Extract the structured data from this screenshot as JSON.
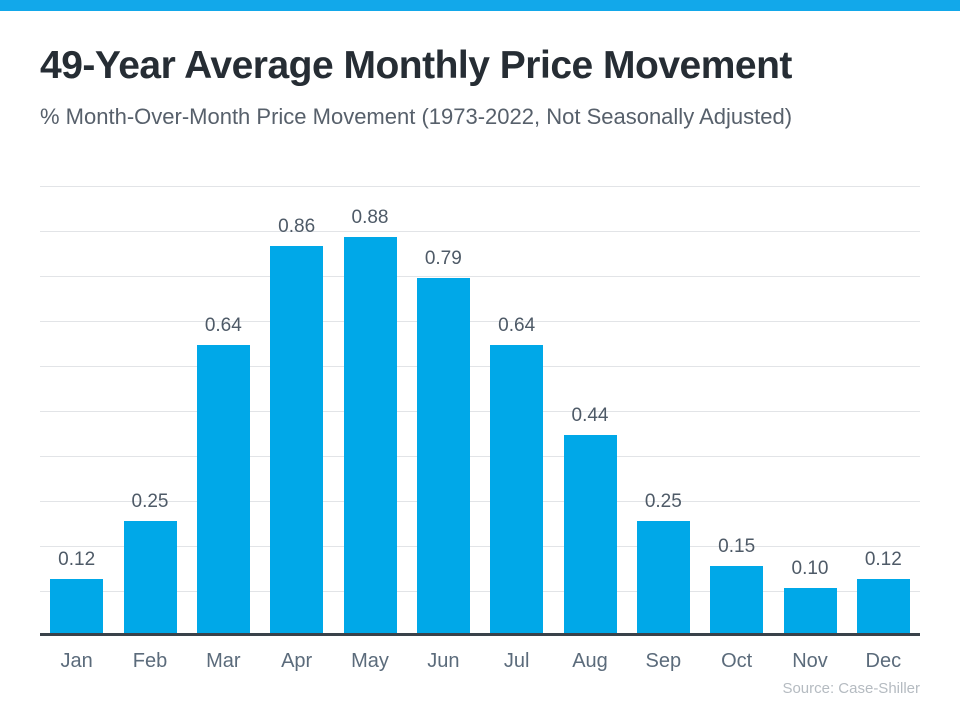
{
  "header": {
    "title": "49-Year Average Monthly Price Movement",
    "subtitle": "% Month-Over-Month Price Movement (1973-2022, Not Seasonally Adjusted)"
  },
  "footer": {
    "source": "Source: Case-Shiller"
  },
  "colors": {
    "accent_strip": "#12A8EA",
    "bar": "#00A8E8",
    "title_text": "#262D34",
    "subtitle_text": "#57606B",
    "value_label_text": "#4E5A67",
    "month_label_text": "#5B6B7B",
    "gridline": "#E2E4E7",
    "axis_line": "#3A424A",
    "source_text": "#B5BBC1"
  },
  "chart_data": {
    "type": "bar",
    "title": "49-Year Average Monthly Price Movement",
    "subtitle": "% Month-Over-Month Price Movement (1973-2022, Not Seasonally Adjusted)",
    "categories": [
      "Jan",
      "Feb",
      "Mar",
      "Apr",
      "May",
      "Jun",
      "Jul",
      "Aug",
      "Sep",
      "Oct",
      "Nov",
      "Dec"
    ],
    "values": [
      0.12,
      0.25,
      0.64,
      0.86,
      0.88,
      0.79,
      0.64,
      0.44,
      0.25,
      0.15,
      0.1,
      0.12
    ],
    "data_labels": [
      "0.12",
      "0.25",
      "0.64",
      "0.86",
      "0.88",
      "0.79",
      "0.64",
      "0.44",
      "0.25",
      "0.15",
      "0.10",
      "0.12"
    ],
    "xlabel": "",
    "ylabel": "",
    "ylim": [
      0,
      1.0
    ],
    "gridline_step": 0.1,
    "grid": true,
    "legend": false,
    "y_axis_tick_labels_visible": false,
    "bar_color": "#00A8E8",
    "source": "Source: Case-Shiller"
  }
}
